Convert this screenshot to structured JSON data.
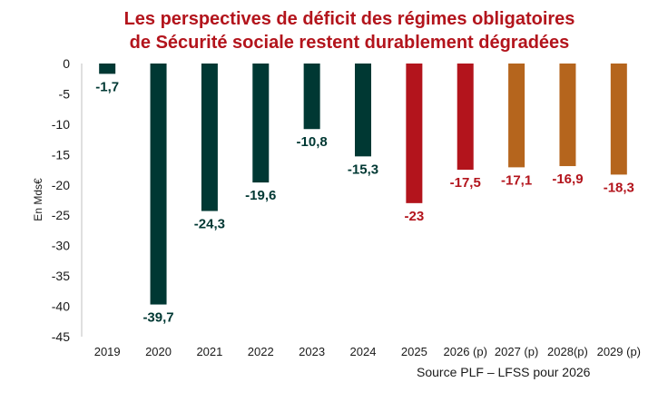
{
  "chart_data": {
    "type": "bar",
    "title_lines": [
      "Les perspectives de déficit des régimes obligatoires",
      "de Sécurité sociale restent durablement dégradées"
    ],
    "ylabel": "En Mds€",
    "xlabel": "",
    "ylim": [
      -45,
      0
    ],
    "yticks": [
      0,
      -5,
      -10,
      -15,
      -20,
      -25,
      -30,
      -35,
      -40,
      -45
    ],
    "grid": false,
    "categories": [
      "2019",
      "2020",
      "2021",
      "2022",
      "2023",
      "2024",
      "2025",
      "2026 (p)",
      "2027 (p)",
      "2028(p)",
      "2029 (p)"
    ],
    "values": [
      -1.7,
      -39.7,
      -24.3,
      -19.6,
      -10.8,
      -15.3,
      -23,
      -17.5,
      -17.1,
      -16.9,
      -18.3
    ],
    "value_labels": [
      "-1,7",
      "-39,7",
      "-24,3",
      "-19,6",
      "-10,8",
      "-15,3",
      "-23",
      "-17,5",
      "-17,1",
      "-16,9",
      "-18,3"
    ],
    "bar_colors": [
      "#003833",
      "#003833",
      "#003833",
      "#003833",
      "#003833",
      "#003833",
      "#b3141c",
      "#b3141c",
      "#b5651d",
      "#b5651d",
      "#b5651d"
    ],
    "label_colors": [
      "#003833",
      "#003833",
      "#003833",
      "#003833",
      "#003833",
      "#003833",
      "#b3141c",
      "#b3141c",
      "#b3141c",
      "#b3141c",
      "#b3141c"
    ],
    "annotation": "Source PLF – LFSS pour 2026"
  }
}
